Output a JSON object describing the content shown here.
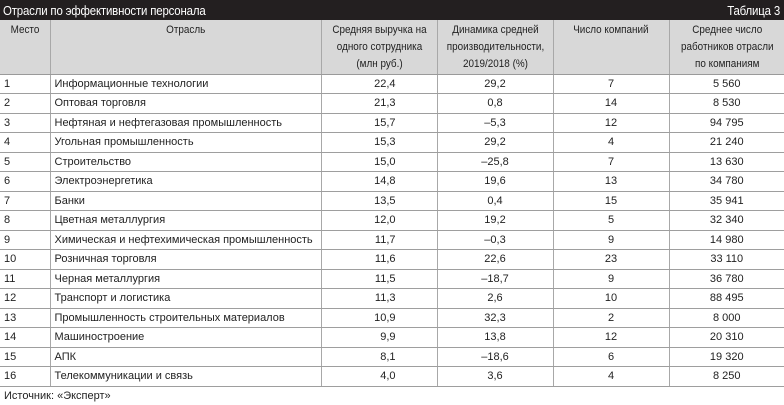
{
  "table": {
    "title": "Отрасли по эффективности персонала",
    "label": "Таблица 3",
    "headers": {
      "rank": "Место",
      "industry": "Отрасль",
      "revenue": "Средняя выручка на одного сотрудника (млн руб.)",
      "dynamics": "Динамика средней производительности, 2019/2018 (%)",
      "companies": "Число компаний",
      "employees": "Среднее число работников отрасли по компаниям"
    },
    "rows": [
      {
        "rank": "1",
        "industry": "Информационные технологии",
        "revenue": "22,4",
        "dynamics": "29,2",
        "companies": "7",
        "employees": "5 560"
      },
      {
        "rank": "2",
        "industry": "Оптовая торговля",
        "revenue": "21,3",
        "dynamics": "0,8",
        "companies": "14",
        "employees": "8 530"
      },
      {
        "rank": "3",
        "industry": "Нефтяная и нефтегазовая промышленность",
        "revenue": "15,7",
        "dynamics": "–5,3",
        "companies": "12",
        "employees": "94 795"
      },
      {
        "rank": "4",
        "industry": "Угольная промышленность",
        "revenue": "15,3",
        "dynamics": "29,2",
        "companies": "4",
        "employees": "21 240"
      },
      {
        "rank": "5",
        "industry": "Строительство",
        "revenue": "15,0",
        "dynamics": "–25,8",
        "companies": "7",
        "employees": "13 630"
      },
      {
        "rank": "6",
        "industry": "Электроэнергетика",
        "revenue": "14,8",
        "dynamics": "19,6",
        "companies": "13",
        "employees": "34 780"
      },
      {
        "rank": "7",
        "industry": "Банки",
        "revenue": "13,5",
        "dynamics": "0,4",
        "companies": "15",
        "employees": "35 941"
      },
      {
        "rank": "8",
        "industry": "Цветная металлургия",
        "revenue": "12,0",
        "dynamics": "19,2",
        "companies": "5",
        "employees": "32 340"
      },
      {
        "rank": "9",
        "industry": "Химическая и нефтехимическая промышленность",
        "revenue": "11,7",
        "dynamics": "–0,3",
        "companies": "9",
        "employees": "14 980"
      },
      {
        "rank": "10",
        "industry": "Розничная торговля",
        "revenue": "11,6",
        "dynamics": "22,6",
        "companies": "23",
        "employees": "33 110"
      },
      {
        "rank": "11",
        "industry": "Черная металлургия",
        "revenue": "11,5",
        "dynamics": "–18,7",
        "companies": "9",
        "employees": "36 780"
      },
      {
        "rank": "12",
        "industry": "Транспорт и логистика",
        "revenue": "11,3",
        "dynamics": "2,6",
        "companies": "10",
        "employees": "88 495"
      },
      {
        "rank": "13",
        "industry": "Промышленность строительных материалов",
        "revenue": "10,9",
        "dynamics": "32,3",
        "companies": "2",
        "employees": "8 000"
      },
      {
        "rank": "14",
        "industry": "Машиностроение",
        "revenue": "9,9",
        "dynamics": "13,8",
        "companies": "12",
        "employees": "20 310"
      },
      {
        "rank": "15",
        "industry": "АПК",
        "revenue": "8,1",
        "dynamics": "–18,6",
        "companies": "6",
        "employees": "19 320"
      },
      {
        "rank": "16",
        "industry": "Телекоммуникации и связь",
        "revenue": "4,0",
        "dynamics": "3,6",
        "companies": "4",
        "employees": "8 250"
      }
    ],
    "source": "Источник: «Эксперт»"
  },
  "colors": {
    "title_bg": "#231f20",
    "title_text": "#ffffff",
    "header_bg": "#d8d8d8",
    "grid": "#a8a8a8"
  }
}
